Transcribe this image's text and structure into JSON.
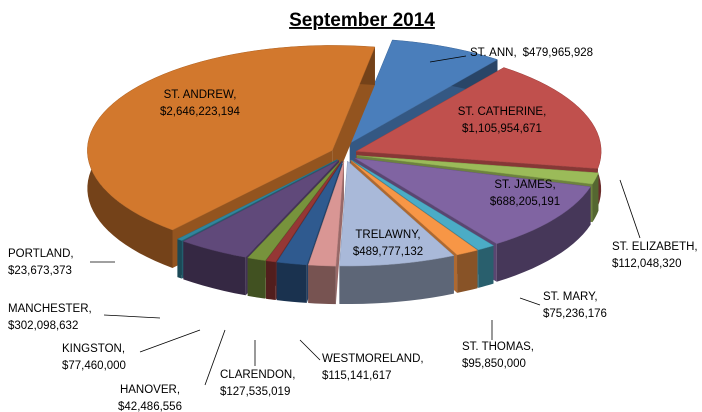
{
  "chart_data": {
    "type": "pie3d",
    "title": "September 2014",
    "categories": [
      "ST. ANN,",
      "ST. CATHERINE,",
      "ST. ELIZABETH,",
      "ST. JAMES,",
      "ST. MARY,",
      "ST. THOMAS,",
      "TRELAWNY,",
      "WESTMORELAND,",
      "CLARENDON,",
      "HANOVER,",
      "KINGSTON,",
      "MANCHESTER,",
      "PORTLAND,",
      "ST. ANDREW,"
    ],
    "values": [
      479965928,
      1105954671,
      112048320,
      688205191,
      75236176,
      95850000,
      489777132,
      115141617,
      127535019,
      42486556,
      77460000,
      302098632,
      23673373,
      2646223194
    ],
    "value_labels": [
      "$479,965,928",
      "$1,105,954,671",
      "$112,048,320",
      "$688,205,191",
      "$75,236,176",
      "$95,850,000",
      "$489,777,132",
      "$115,141,617",
      "$127,535,019",
      "$42,486,556",
      "$77,460,000",
      "$302,098,632",
      "$23,673,373",
      "$2,646,223,194"
    ],
    "colors": [
      "#4a7ebb",
      "#c0504d",
      "#9bbb59",
      "#8064a2",
      "#4bacc6",
      "#f79646",
      "#a9b9d9",
      "#d99694",
      "#2f5a8f",
      "#953735",
      "#77933c",
      "#60497a",
      "#31859c",
      "#d2782d"
    ]
  }
}
